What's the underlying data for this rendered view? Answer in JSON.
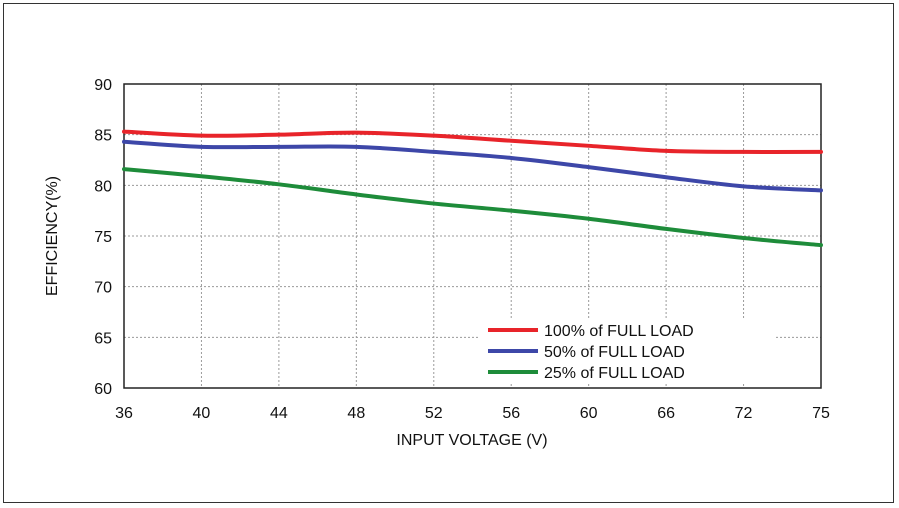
{
  "chart_data": {
    "type": "line",
    "title": "",
    "xlabel": "INPUT VOLTAGE (V)",
    "ylabel": "EFFICIENCY(%)",
    "x_categories": [
      "36",
      "40",
      "44",
      "48",
      "52",
      "56",
      "60",
      "66",
      "72",
      "75"
    ],
    "y_ticks": [
      60,
      65,
      70,
      75,
      80,
      85,
      90
    ],
    "ylim": [
      60,
      90
    ],
    "grid": true,
    "legend_position": "bottom-right",
    "series": [
      {
        "name": "100% of FULL LOAD",
        "color": "#e8242a",
        "values": [
          85.3,
          84.9,
          85.0,
          85.2,
          84.9,
          84.4,
          83.9,
          83.4,
          83.3,
          83.3
        ]
      },
      {
        "name": "50% of FULL LOAD",
        "color": "#3d47a8",
        "values": [
          84.3,
          83.8,
          83.8,
          83.8,
          83.3,
          82.7,
          81.8,
          80.8,
          79.9,
          79.5
        ]
      },
      {
        "name": "25% of FULL LOAD",
        "color": "#1e8c3a",
        "values": [
          81.6,
          80.9,
          80.1,
          79.1,
          78.2,
          77.5,
          76.7,
          75.7,
          74.8,
          74.1
        ]
      }
    ]
  }
}
